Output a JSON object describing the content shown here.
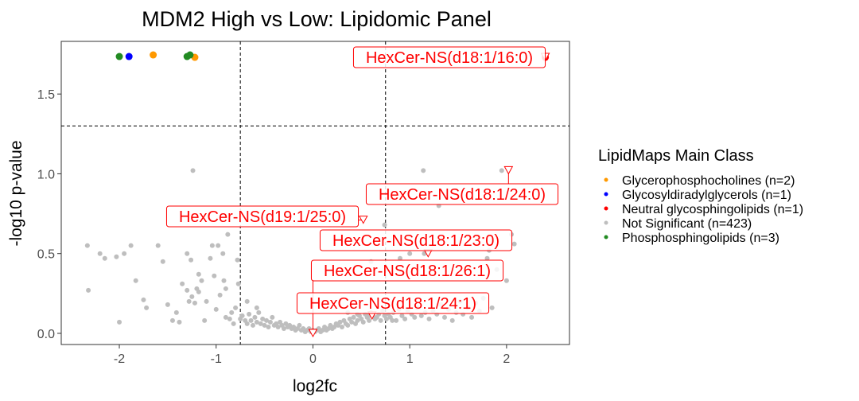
{
  "chart_data": {
    "type": "scatter",
    "title": "MDM2 High vs Low: Lipidomic Panel",
    "xlabel": "log2fc",
    "ylabel": "-log10 p-value",
    "xlim": [
      -2.6,
      2.65
    ],
    "ylim": [
      -0.07,
      1.83
    ],
    "xticks": [
      -2,
      -1,
      0,
      1,
      2
    ],
    "yticks": [
      0.0,
      0.5,
      1.0,
      1.5
    ],
    "ytick_labels": [
      "0.0",
      "0.5",
      "1.0",
      "1.5"
    ],
    "xtick_labels": [
      "-2",
      "-1",
      "0",
      "1",
      "2"
    ],
    "grid": false,
    "threshold_lines": {
      "x": [
        -0.75,
        0.75
      ],
      "y": [
        1.3
      ]
    },
    "legend": {
      "title": "LipidMaps Main Class",
      "position": "right",
      "entries": [
        {
          "label": "Glycerophosphocholines (n=2)",
          "color": "#ff9900"
        },
        {
          "label": "Glycosyldiradylglycerols (n=1)",
          "color": "#0000ff"
        },
        {
          "label": "Neutral glycosphingolipids (n=1)",
          "color": "#ff0000"
        },
        {
          "label": "Not Significant (n=423)",
          "color": "#bebebe"
        },
        {
          "label": "Phosphosphingolipids (n=3)",
          "color": "#228b22"
        }
      ]
    },
    "series": [
      {
        "name": "Glycerophosphocholines (n=2)",
        "color": "#ff9900",
        "points": [
          [
            -1.65,
            1.745
          ],
          [
            -1.22,
            1.73
          ]
        ]
      },
      {
        "name": "Glycosyldiradylglycerols (n=1)",
        "color": "#0000ff",
        "points": [
          [
            -1.9,
            1.735
          ]
        ]
      },
      {
        "name": "Neutral glycosphingolipids (n=1)",
        "color": "#ff0000",
        "points": [
          [
            2.4,
            1.73
          ]
        ]
      },
      {
        "name": "Phosphosphingolipids (n=3)",
        "color": "#228b22",
        "points": [
          [
            -2.0,
            1.735
          ],
          [
            -1.3,
            1.735
          ],
          [
            -1.27,
            1.745
          ]
        ]
      },
      {
        "name": "Not Significant (n=423)",
        "color": "#bebebe",
        "points": [
          [
            -2.33,
            0.55
          ],
          [
            -2.32,
            0.27
          ],
          [
            -2.2,
            0.5
          ],
          [
            -2.15,
            0.47
          ],
          [
            -2.03,
            0.48
          ],
          [
            -2.0,
            0.07
          ],
          [
            -1.95,
            0.5
          ],
          [
            -1.88,
            0.55
          ],
          [
            -1.83,
            0.33
          ],
          [
            -1.75,
            0.21
          ],
          [
            -1.72,
            0.16
          ],
          [
            -1.6,
            0.55
          ],
          [
            -1.55,
            0.45
          ],
          [
            -1.5,
            0.18
          ],
          [
            -1.45,
            0.08
          ],
          [
            -1.41,
            0.13
          ],
          [
            -1.38,
            0.07
          ],
          [
            -1.35,
            0.31
          ],
          [
            -1.3,
            0.27
          ],
          [
            -1.28,
            0.2
          ],
          [
            -1.25,
            0.23
          ],
          [
            -1.22,
            0.19
          ],
          [
            -1.18,
            0.26
          ],
          [
            -1.15,
            0.33
          ],
          [
            -1.12,
            0.08
          ],
          [
            -1.1,
            0.2
          ],
          [
            -1.06,
            0.47
          ],
          [
            -1.04,
            0.55
          ],
          [
            -1.02,
            0.36
          ],
          [
            -1.0,
            0.15
          ],
          [
            -0.98,
            0.55
          ],
          [
            -0.96,
            0.24
          ],
          [
            -0.93,
            0.5
          ],
          [
            -0.92,
            0.33
          ],
          [
            -0.9,
            0.1
          ],
          [
            -0.88,
            0.62
          ],
          [
            -0.86,
            0.09
          ],
          [
            -0.84,
            0.13
          ],
          [
            -0.82,
            0.06
          ],
          [
            -0.8,
            0.16
          ],
          [
            -0.78,
            0.46
          ],
          [
            -0.77,
            0.31
          ],
          [
            -0.75,
            0.09
          ],
          [
            -0.73,
            0.11
          ],
          [
            -0.7,
            0.08
          ],
          [
            -0.68,
            0.06
          ],
          [
            -0.66,
            0.12
          ],
          [
            -0.64,
            0.08
          ],
          [
            -0.62,
            0.05
          ],
          [
            -0.6,
            0.1
          ],
          [
            -0.58,
            0.07
          ],
          [
            -0.56,
            0.13
          ],
          [
            -0.54,
            0.06
          ],
          [
            -0.52,
            0.09
          ],
          [
            -0.5,
            0.05
          ],
          [
            -0.48,
            0.08
          ],
          [
            -0.46,
            0.04
          ],
          [
            -0.44,
            0.07
          ],
          [
            -0.42,
            0.1
          ],
          [
            -0.4,
            0.05
          ],
          [
            -0.38,
            0.06
          ],
          [
            -0.36,
            0.04
          ],
          [
            -0.34,
            0.07
          ],
          [
            -0.32,
            0.05
          ],
          [
            -0.3,
            0.03
          ],
          [
            -0.28,
            0.06
          ],
          [
            -0.26,
            0.04
          ],
          [
            -0.24,
            0.05
          ],
          [
            -0.22,
            0.03
          ],
          [
            -0.2,
            0.04
          ],
          [
            -0.18,
            0.02
          ],
          [
            -0.16,
            0.03
          ],
          [
            -0.14,
            0.05
          ],
          [
            -0.12,
            0.02
          ],
          [
            -0.1,
            0.03
          ],
          [
            -0.08,
            0.01
          ],
          [
            -0.06,
            0.02
          ],
          [
            -0.04,
            0.03
          ],
          [
            -0.02,
            0.01
          ],
          [
            0.0,
            0.02
          ],
          [
            0.02,
            0.01
          ],
          [
            0.04,
            0.02
          ],
          [
            0.06,
            0.03
          ],
          [
            0.08,
            0.01
          ],
          [
            0.1,
            0.02
          ],
          [
            0.12,
            0.04
          ],
          [
            0.14,
            0.02
          ],
          [
            0.16,
            0.03
          ],
          [
            0.18,
            0.05
          ],
          [
            0.2,
            0.03
          ],
          [
            0.22,
            0.04
          ],
          [
            0.24,
            0.06
          ],
          [
            0.26,
            0.05
          ],
          [
            0.28,
            0.07
          ],
          [
            0.3,
            0.04
          ],
          [
            0.32,
            0.08
          ],
          [
            0.34,
            0.06
          ],
          [
            0.36,
            0.05
          ],
          [
            0.38,
            0.09
          ],
          [
            0.4,
            0.07
          ],
          [
            0.42,
            0.1
          ],
          [
            0.44,
            0.06
          ],
          [
            0.46,
            0.08
          ],
          [
            0.48,
            0.11
          ],
          [
            0.5,
            0.09
          ],
          [
            0.52,
            0.07
          ],
          [
            0.54,
            0.12
          ],
          [
            0.56,
            0.1
          ],
          [
            0.58,
            0.08
          ],
          [
            0.6,
            0.13
          ],
          [
            0.62,
            0.11
          ],
          [
            0.64,
            0.09
          ],
          [
            0.66,
            0.1
          ],
          [
            0.68,
            0.12
          ],
          [
            0.7,
            0.08
          ],
          [
            0.72,
            0.14
          ],
          [
            0.74,
            0.11
          ],
          [
            0.76,
            0.09
          ],
          [
            0.78,
            0.12
          ],
          [
            0.8,
            0.1
          ],
          [
            0.83,
            0.13
          ],
          [
            0.86,
            0.08
          ],
          [
            0.89,
            0.15
          ],
          [
            0.92,
            0.11
          ],
          [
            0.95,
            0.09
          ],
          [
            0.98,
            0.14
          ],
          [
            1.02,
            0.12
          ],
          [
            1.05,
            0.1
          ],
          [
            1.08,
            0.16
          ],
          [
            1.12,
            0.11
          ],
          [
            1.14,
            1.02
          ],
          [
            1.16,
            0.13
          ],
          [
            1.2,
            0.09
          ],
          [
            1.24,
            0.14
          ],
          [
            1.28,
            0.12
          ],
          [
            1.32,
            0.18
          ],
          [
            1.36,
            0.1
          ],
          [
            1.4,
            0.15
          ],
          [
            1.44,
            0.08
          ],
          [
            1.48,
            0.13
          ],
          [
            1.52,
            0.2
          ],
          [
            1.55,
            0.12
          ],
          [
            1.6,
            0.16
          ],
          [
            1.64,
            0.1
          ],
          [
            1.68,
            0.19
          ],
          [
            1.72,
            0.14
          ],
          [
            1.76,
            0.22
          ],
          [
            1.8,
            0.47
          ],
          [
            1.82,
            0.52
          ],
          [
            1.85,
            0.16
          ],
          [
            1.9,
            0.4
          ],
          [
            1.95,
            1.02
          ],
          [
            2.0,
            0.33
          ],
          [
            2.05,
            0.62
          ],
          [
            2.08,
            0.56
          ],
          [
            0.9,
            0.47
          ],
          [
            1.0,
            0.5
          ],
          [
            1.15,
            0.5
          ],
          [
            1.3,
            0.8
          ],
          [
            0.6,
            0.45
          ],
          [
            0.58,
            0.11
          ],
          [
            0.82,
            0.08
          ],
          [
            -0.58,
            0.16
          ],
          [
            -0.68,
            0.2
          ],
          [
            -1.26,
            0.46
          ],
          [
            -1.18,
            0.37
          ],
          [
            -1.24,
            1.02
          ],
          [
            -1.3,
            0.5
          ],
          [
            0.74,
            0.68
          ],
          [
            0.36,
            0.13
          ],
          [
            0.46,
            0.12
          ],
          [
            -0.9,
            0.28
          ],
          [
            -1.2,
            0.28
          ]
        ]
      }
    ],
    "annotations": [
      {
        "label": "HexCer-NS(d18:1/16:0)",
        "x": 2.4,
        "y": 1.73
      },
      {
        "label": "HexCer-NS(d19:1/25:0)",
        "x": 0.52,
        "y": 0.71
      },
      {
        "label": "HexCer-NS(d18:1/24:0)",
        "x": 2.02,
        "y": 1.02
      },
      {
        "label": "HexCer-NS(d18:1/23:0)",
        "x": 1.19,
        "y": 0.5
      },
      {
        "label": "HexCer-NS(d18:1/26:1)",
        "x": 0.0,
        "y": 0.0
      },
      {
        "label": "HexCer-NS(d18:1/24:1)",
        "x": 0.61,
        "y": 0.11
      }
    ]
  }
}
